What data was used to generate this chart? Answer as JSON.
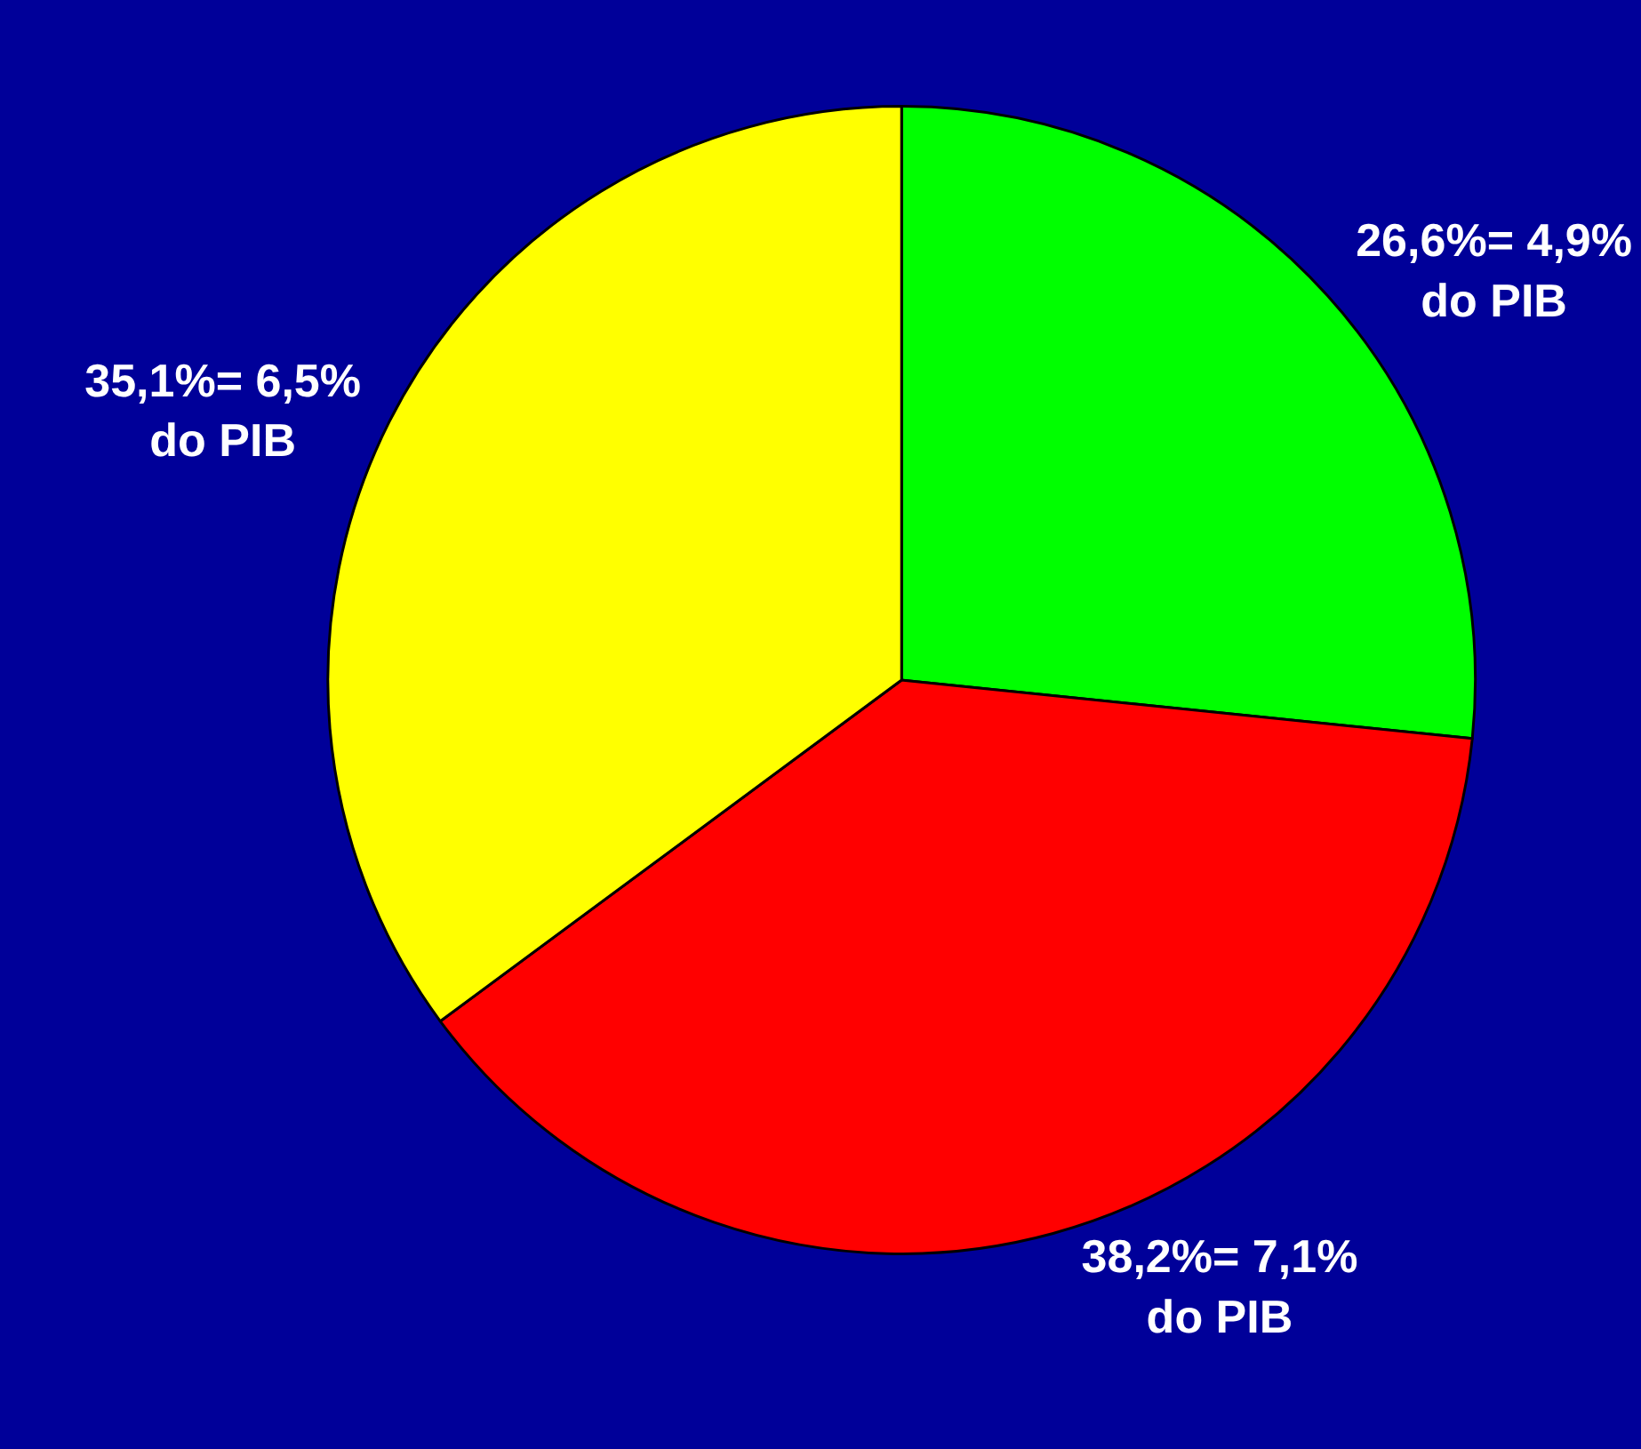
{
  "chart_data": {
    "type": "pie",
    "categories": [
      null,
      null,
      null
    ],
    "values": [
      26.6,
      38.2,
      35.1
    ],
    "colors": [
      "#00ff00",
      "#ff0000",
      "#ffff00"
    ],
    "value_labels": [
      "26,6%= 4,9%\ndo PIB",
      "38,2%= 7,1%\ndo PIB",
      "35,1%= 6,5%\ndo PIB"
    ],
    "legend": false
  }
}
